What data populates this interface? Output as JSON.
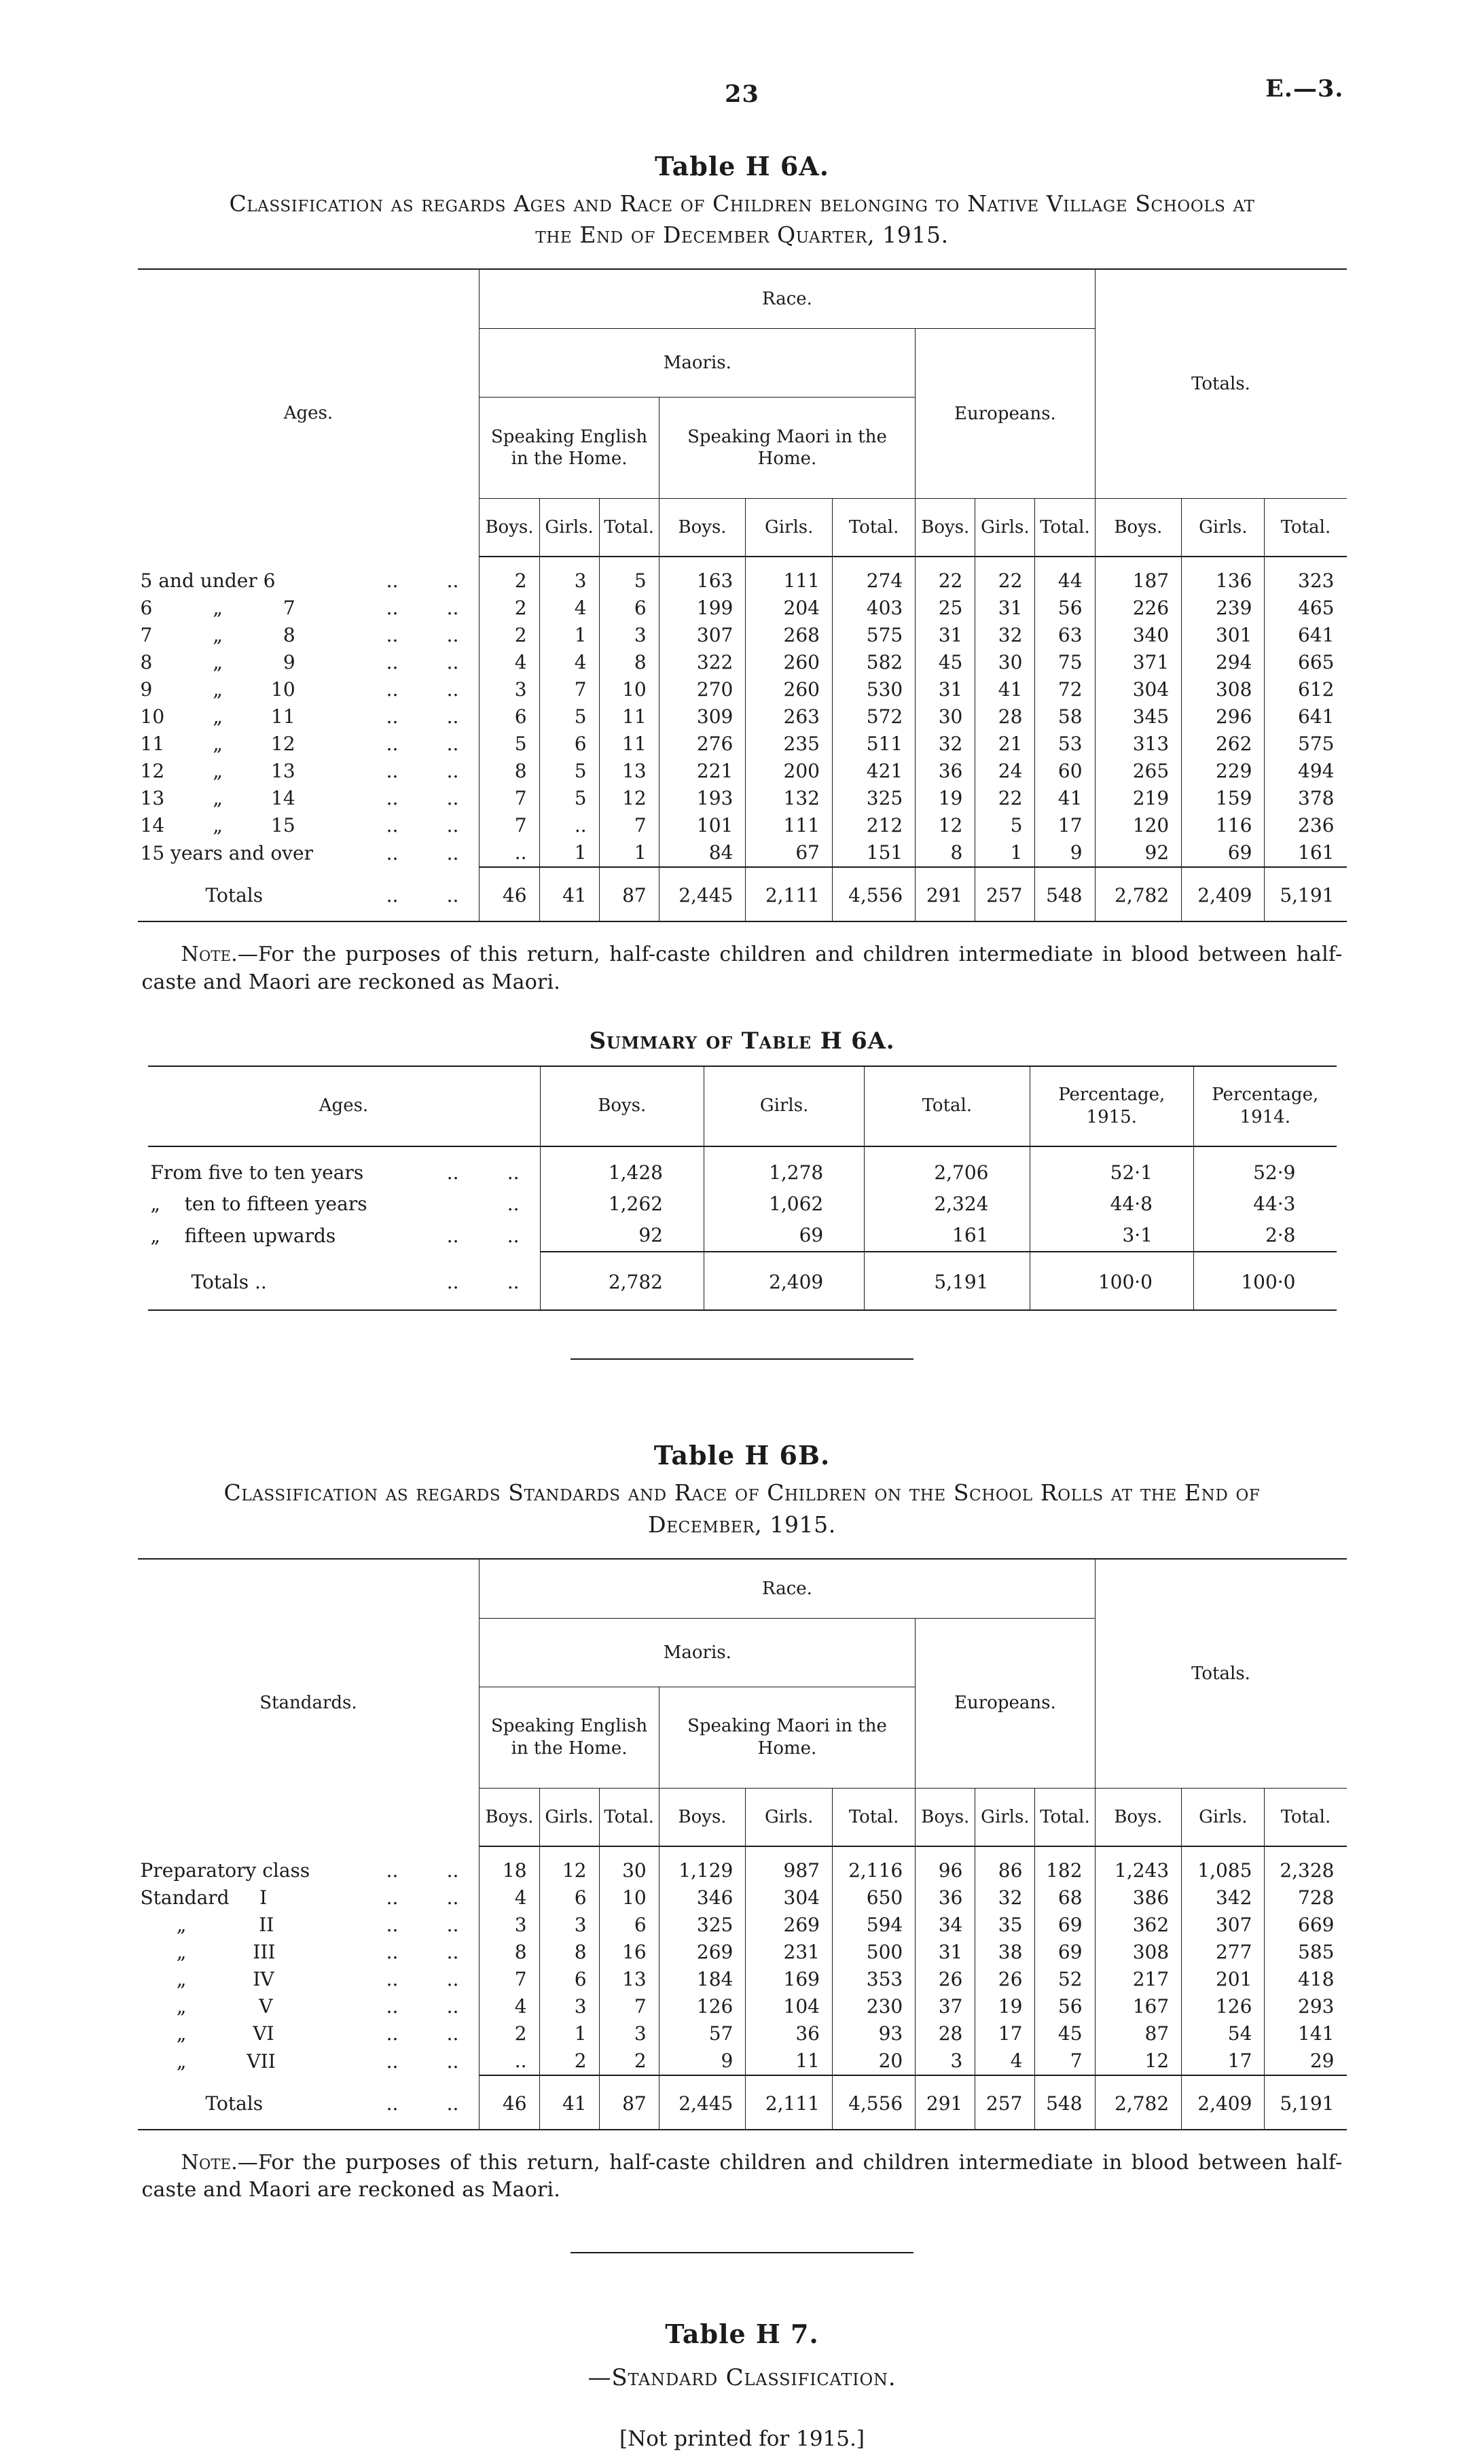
{
  "page": {
    "number": "23",
    "doc_ref": "E.—3."
  },
  "table_h6a": {
    "title": "Table H 6A.",
    "subtitle": "Classification as regards Ages and Race of Children belonging to Native Village Schools at the End of December Quarter, 1915.",
    "head": {
      "ages": "Ages.",
      "race": "Race.",
      "maoris": "Maoris.",
      "speaking_english": "Speaking English in the Home.",
      "speaking_maori": "Speaking Maori in the Home.",
      "europeans": "Europeans.",
      "totals": "Totals.",
      "boys": "Boys.",
      "girls": "Girls.",
      "total": "Total."
    },
    "rows": [
      {
        "label": "5 and under 6",
        "dots": "..        ..",
        "values": [
          "2",
          "3",
          "5",
          "163",
          "111",
          "274",
          "22",
          "22",
          "44",
          "187",
          "136",
          "323"
        ]
      },
      {
        "label": "6          „          7",
        "dots": "..        ..",
        "values": [
          "2",
          "4",
          "6",
          "199",
          "204",
          "403",
          "25",
          "31",
          "56",
          "226",
          "239",
          "465"
        ]
      },
      {
        "label": "7          „          8",
        "dots": "..        ..",
        "values": [
          "2",
          "1",
          "3",
          "307",
          "268",
          "575",
          "31",
          "32",
          "63",
          "340",
          "301",
          "641"
        ]
      },
      {
        "label": "8          „          9",
        "dots": "..        ..",
        "values": [
          "4",
          "4",
          "8",
          "322",
          "260",
          "582",
          "45",
          "30",
          "75",
          "371",
          "294",
          "665"
        ]
      },
      {
        "label": "9          „        10",
        "dots": "..        ..",
        "values": [
          "3",
          "7",
          "10",
          "270",
          "260",
          "530",
          "31",
          "41",
          "72",
          "304",
          "308",
          "612"
        ]
      },
      {
        "label": "10        „        11",
        "dots": "..        ..",
        "values": [
          "6",
          "5",
          "11",
          "309",
          "263",
          "572",
          "30",
          "28",
          "58",
          "345",
          "296",
          "641"
        ]
      },
      {
        "label": "11        „        12",
        "dots": "..        ..",
        "values": [
          "5",
          "6",
          "11",
          "276",
          "235",
          "511",
          "32",
          "21",
          "53",
          "313",
          "262",
          "575"
        ]
      },
      {
        "label": "12        „        13",
        "dots": "..        ..",
        "values": [
          "8",
          "5",
          "13",
          "221",
          "200",
          "421",
          "36",
          "24",
          "60",
          "265",
          "229",
          "494"
        ]
      },
      {
        "label": "13        „        14",
        "dots": "..        ..",
        "values": [
          "7",
          "5",
          "12",
          "193",
          "132",
          "325",
          "19",
          "22",
          "41",
          "219",
          "159",
          "378"
        ]
      },
      {
        "label": "14        „        15",
        "dots": "..        ..",
        "values": [
          "7",
          "..",
          "7",
          "101",
          "111",
          "212",
          "12",
          "5",
          "17",
          "120",
          "116",
          "236"
        ]
      },
      {
        "label": "15 years and over",
        "dots": "..        ..",
        "values": [
          "..",
          "1",
          "1",
          "84",
          "67",
          "151",
          "8",
          "1",
          "9",
          "92",
          "69",
          "161"
        ]
      }
    ],
    "totals_row": {
      "label": "Totals",
      "dots": "..        ..",
      "values": [
        "46",
        "41",
        "87",
        "2,445",
        "2,111",
        "4,556",
        "291",
        "257",
        "548",
        "2,782",
        "2,409",
        "5,191"
      ]
    },
    "note_lead": "Note.",
    "note_rest": "—For the purposes of this return, half-caste children and children intermediate in blood between half-caste and Maori are reckoned as Maori."
  },
  "summary_h6a": {
    "title": "Summary of Table H 6A.",
    "headers": [
      "Ages.",
      "Boys.",
      "Girls.",
      "Total.",
      "Percentage, 1915.",
      "Percentage, 1914."
    ],
    "rows": [
      {
        "label": "From five to ten years",
        "dots": "..        ..",
        "values": [
          "1,428",
          "1,278",
          "2,706",
          "52·1",
          "52·9"
        ]
      },
      {
        "label": "„    ten to fifteen years",
        "dots": "..",
        "values": [
          "1,262",
          "1,062",
          "2,324",
          "44·8",
          "44·3"
        ]
      },
      {
        "label": "„    fifteen upwards",
        "dots": "..        ..",
        "values": [
          "92",
          "69",
          "161",
          "3·1",
          "2·8"
        ]
      }
    ],
    "totals_row": {
      "label": "Totals ..",
      "dots": "..        ..",
      "values": [
        "2,782",
        "2,409",
        "5,191",
        "100·0",
        "100·0"
      ]
    }
  },
  "table_h6b": {
    "title": "Table H 6B.",
    "subtitle": "Classification as regards Standards and Race of Children on the School Rolls at the End of December, 1915.",
    "head": {
      "standards": "Standards.",
      "race": "Race.",
      "maoris": "Maoris.",
      "speaking_english": "Speaking English in the Home.",
      "speaking_maori": "Speaking Maori in the Home.",
      "europeans": "Europeans.",
      "totals": "Totals.",
      "boys": "Boys.",
      "girls": "Girls.",
      "total": "Total."
    },
    "rows": [
      {
        "label": "Preparatory class",
        "dots": "..        ..",
        "values": [
          "18",
          "12",
          "30",
          "1,129",
          "987",
          "2,116",
          "96",
          "86",
          "182",
          "1,243",
          "1,085",
          "2,328"
        ]
      },
      {
        "label": "Standard     I",
        "dots": "..        ..",
        "values": [
          "4",
          "6",
          "10",
          "346",
          "304",
          "650",
          "36",
          "32",
          "68",
          "386",
          "342",
          "728"
        ]
      },
      {
        "label": "      „            II",
        "dots": "..        ..",
        "values": [
          "3",
          "3",
          "6",
          "325",
          "269",
          "594",
          "34",
          "35",
          "69",
          "362",
          "307",
          "669"
        ]
      },
      {
        "label": "      „           III",
        "dots": "..        ..",
        "values": [
          "8",
          "8",
          "16",
          "269",
          "231",
          "500",
          "31",
          "38",
          "69",
          "308",
          "277",
          "585"
        ]
      },
      {
        "label": "      „           IV",
        "dots": "..        ..",
        "values": [
          "7",
          "6",
          "13",
          "184",
          "169",
          "353",
          "26",
          "26",
          "52",
          "217",
          "201",
          "418"
        ]
      },
      {
        "label": "      „            V",
        "dots": "..        ..",
        "values": [
          "4",
          "3",
          "7",
          "126",
          "104",
          "230",
          "37",
          "19",
          "56",
          "167",
          "126",
          "293"
        ]
      },
      {
        "label": "      „           VI",
        "dots": "..        ..",
        "values": [
          "2",
          "1",
          "3",
          "57",
          "36",
          "93",
          "28",
          "17",
          "45",
          "87",
          "54",
          "141"
        ]
      },
      {
        "label": "      „          VII",
        "dots": "..        ..",
        "values": [
          "..",
          "2",
          "2",
          "9",
          "11",
          "20",
          "3",
          "4",
          "7",
          "12",
          "17",
          "29"
        ]
      }
    ],
    "totals_row": {
      "label": "Totals",
      "dots": "..        ..",
      "values": [
        "46",
        "41",
        "87",
        "2,445",
        "2,111",
        "4,556",
        "291",
        "257",
        "548",
        "2,782",
        "2,409",
        "5,191"
      ]
    },
    "note_lead": "Note.",
    "note_rest": "—For the purposes of this return, half-caste children and children intermediate in blood between half-caste and Maori are reckoned as Maori."
  },
  "table_h7": {
    "title": "Table H 7.",
    "subtitle": "—Standard Classification.",
    "note": "[Not printed for 1915.]"
  }
}
